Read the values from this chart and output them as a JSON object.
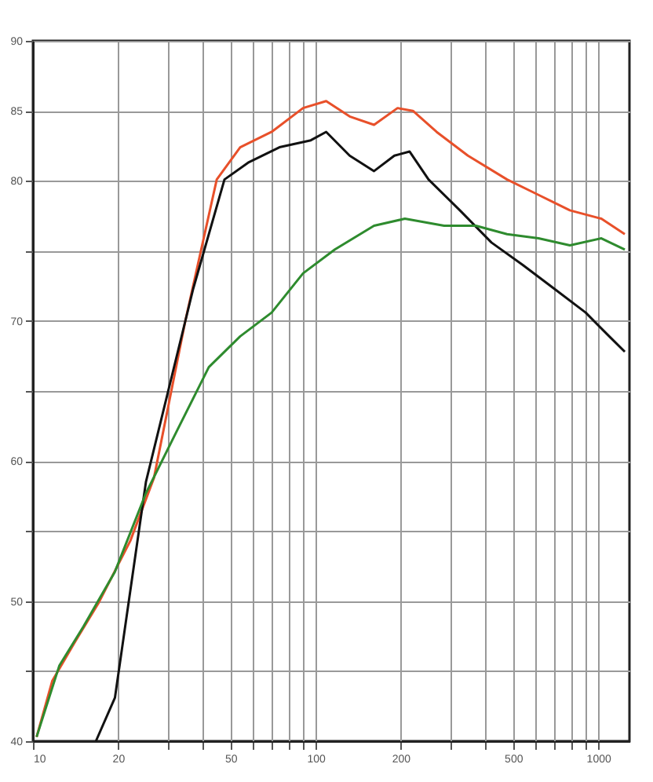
{
  "chart_data": {
    "type": "line",
    "log": "x",
    "grid": true,
    "line_style": "solid",
    "marker": "none",
    "xlim": [
      10,
      1290
    ],
    "xticks": [
      10,
      20,
      {
        "value": 30,
        "label": null
      },
      {
        "value": 40,
        "label": null
      },
      50,
      {
        "value": 60,
        "label": null
      },
      {
        "value": 70,
        "label": null
      },
      {
        "value": 80,
        "label": null
      },
      {
        "value": 90,
        "label": null
      },
      100,
      200,
      {
        "value": 300,
        "label": null
      },
      {
        "value": 400,
        "label": null
      },
      500,
      {
        "value": 600,
        "label": null
      },
      {
        "value": 700,
        "label": null
      },
      {
        "value": 800,
        "label": null
      },
      {
        "value": 900,
        "label": null
      },
      1000
    ],
    "ylim": [
      40,
      90
    ],
    "yticks": [
      40,
      {
        "value": 45,
        "label": null
      },
      50,
      {
        "value": 55,
        "label": null
      },
      60,
      {
        "value": 65,
        "label": null
      },
      70,
      {
        "value": 75,
        "label": null
      },
      80,
      85,
      90
    ],
    "series": [
      {
        "color": "#e8502a",
        "x": [
          10.3,
          11.7,
          14.1,
          17.1,
          22.1,
          26.8,
          34.6,
          44.7,
          54.1,
          69.9,
          90.3,
          109,
          132,
          161,
          195,
          221,
          268,
          346,
          476,
          615,
          794,
          1026,
          1242
        ],
        "values": [
          40.3,
          44.3,
          47.1,
          49.9,
          54.3,
          58.8,
          70.0,
          80.1,
          82.4,
          83.5,
          85.2,
          85.7,
          84.6,
          84.0,
          85.2,
          85.0,
          83.5,
          81.8,
          80.1,
          79.0,
          77.9,
          77.3,
          76.2
        ]
      },
      {
        "color": "#111111",
        "x": [
          16.7,
          19.5,
          25.1,
          36.9,
          47.6,
          57.7,
          74.5,
          96.2,
          109,
          132,
          161,
          190,
          215,
          251,
          324,
          419,
          541,
          699,
          903,
          1094,
          1242
        ],
        "values": [
          40,
          43.1,
          58.5,
          72.3,
          80.1,
          81.3,
          82.4,
          82.9,
          83.5,
          81.8,
          80.7,
          81.8,
          82.1,
          80.1,
          77.9,
          75.6,
          74.0,
          72.3,
          70.6,
          68.9,
          67.8
        ]
      },
      {
        "color": "#2e8b2e",
        "x": [
          10.3,
          12.4,
          15.1,
          19.5,
          25.1,
          32.4,
          41.9,
          54.1,
          69.9,
          90.3,
          117,
          161,
          207,
          285,
          369,
          476,
          615,
          794,
          1026,
          1242
        ],
        "values": [
          40.3,
          45.4,
          48.2,
          52.1,
          57.7,
          62.2,
          66.7,
          68.9,
          70.6,
          73.4,
          75.1,
          76.8,
          77.3,
          76.8,
          76.8,
          76.2,
          75.9,
          75.4,
          75.9,
          75.1
        ]
      }
    ]
  }
}
